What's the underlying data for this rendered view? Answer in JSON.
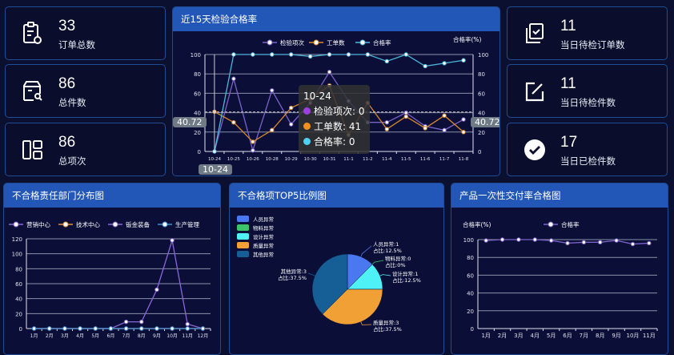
{
  "cards_left": [
    {
      "value": "33",
      "label": "订单总数",
      "icon": "clipboard-settings-icon"
    },
    {
      "value": "86",
      "label": "总件数",
      "icon": "box-search-icon"
    },
    {
      "value": "86",
      "label": "总项次",
      "icon": "layout-grid-icon"
    }
  ],
  "cards_right": [
    {
      "value": "11",
      "label": "当日待检订单数",
      "icon": "copy-check-icon"
    },
    {
      "value": "11",
      "label": "当日待检件数",
      "icon": "edit-square-icon"
    },
    {
      "value": "17",
      "label": "当日已检件数",
      "icon": "check-circle-icon"
    }
  ],
  "tooltip": {
    "title": "10-24",
    "rows": [
      {
        "label": "检验项次: 0",
        "color": "#9b3fe0"
      },
      {
        "label": "工单数: 41",
        "color": "#f5901e"
      },
      {
        "label": "合格率: 0",
        "color": "#4fd0f0"
      }
    ],
    "crosshair_y": "40.72",
    "crosshair_x": "10-24"
  },
  "chart_data": [
    {
      "id": "main",
      "title": "近15天检验合格率",
      "type": "line",
      "y2label": "合格率(%)",
      "categories": [
        "10-24",
        "10-25",
        "10-26",
        "10-28",
        "10-29",
        "10-30",
        "10-31",
        "11-1",
        "11-2",
        "11-4",
        "11-5",
        "11-6",
        "11-7",
        "11-8"
      ],
      "ylim": [
        0,
        100
      ],
      "yticks": [
        0,
        20,
        40,
        60,
        80,
        100
      ],
      "y2lim": [
        0,
        100
      ],
      "grid": true,
      "legend": "top",
      "series": [
        {
          "name": "检验项次",
          "color": "#7c62c9",
          "values": [
            0,
            75,
            1,
            63,
            28,
            50,
            82,
            52,
            30,
            30,
            40,
            26,
            22,
            33
          ]
        },
        {
          "name": "工单数",
          "color": "#d9882c",
          "values": [
            41,
            30,
            10,
            22,
            45,
            54,
            68,
            17,
            50,
            23,
            36,
            24,
            37,
            20
          ]
        },
        {
          "name": "合格率",
          "color": "#4bb8d8",
          "axis": "right",
          "values": [
            0,
            100,
            100,
            100,
            100,
            98,
            100,
            100,
            100,
            93,
            100,
            88,
            91,
            94
          ]
        }
      ]
    },
    {
      "id": "dept",
      "title": "不合格责任部门分布图",
      "type": "line",
      "categories": [
        "1月",
        "2月",
        "3月",
        "4月",
        "5月",
        "6月",
        "7月",
        "8月",
        "9月",
        "10月",
        "11月",
        "12月"
      ],
      "ylim": [
        0,
        120
      ],
      "yticks": [
        0,
        20,
        40,
        60,
        80,
        100,
        120
      ],
      "grid": true,
      "legend": "top",
      "series": [
        {
          "name": "营销中心",
          "color": "#8a66d8",
          "values": [
            0,
            0,
            0,
            0,
            0,
            0,
            9,
            9,
            52,
            118,
            6,
            0
          ]
        },
        {
          "name": "技术中心",
          "color": "#e0903a",
          "values": [
            0,
            0,
            0,
            0,
            0,
            0,
            0,
            0,
            0,
            0,
            0,
            0
          ]
        },
        {
          "name": "钣金装备",
          "color": "#8a66d8",
          "values": [
            0,
            0,
            0,
            0,
            0,
            0,
            0,
            0,
            0,
            0,
            0,
            0
          ]
        },
        {
          "name": "生产管理",
          "color": "#3a8fd0",
          "values": [
            0,
            0,
            0,
            0,
            0,
            0,
            0,
            0,
            0,
            0,
            0,
            0
          ]
        }
      ]
    },
    {
      "id": "pie",
      "title": "不合格项TOP5比例图",
      "type": "pie",
      "legend": "top-left",
      "slices": [
        {
          "name": "人员异常",
          "value": 1,
          "percent": "12.5%",
          "color": "#4a78f0",
          "label": "人员异常:1",
          "sub": "占比:12.5%"
        },
        {
          "name": "物料异常",
          "value": 0,
          "percent": "0%",
          "color": "#3cc46a",
          "label": "物料异常:0",
          "sub": "占比:0%"
        },
        {
          "name": "设计异常",
          "value": 1,
          "percent": "12.5%",
          "color": "#4ef2f6",
          "label": "设计异常:1",
          "sub": "占比:12.5%"
        },
        {
          "name": "质量异常",
          "value": 3,
          "percent": "37.5%",
          "color": "#f0a035",
          "label": "质量异常:3",
          "sub": "占比:37.5%"
        },
        {
          "name": "其他异常",
          "value": 3,
          "percent": "37.5%",
          "color": "#155e96",
          "label": "其他异常:3",
          "sub": "占比:37.5%"
        }
      ]
    },
    {
      "id": "delivery",
      "title": "产品一次性交付率合格图",
      "type": "line",
      "ylabel": "合格率(%)",
      "categories": [
        "1月",
        "2月",
        "3月",
        "4月",
        "5月",
        "6月",
        "7月",
        "8月",
        "9月",
        "10月",
        "11月"
      ],
      "ylim": [
        0,
        100
      ],
      "yticks": [
        0,
        20,
        40,
        60,
        80,
        100
      ],
      "grid": true,
      "legend": "top",
      "series": [
        {
          "name": "合格率",
          "color": "#7c62c9",
          "values": [
            99,
            100,
            100,
            100,
            99,
            96,
            97,
            97,
            99,
            95,
            96
          ]
        }
      ]
    }
  ]
}
